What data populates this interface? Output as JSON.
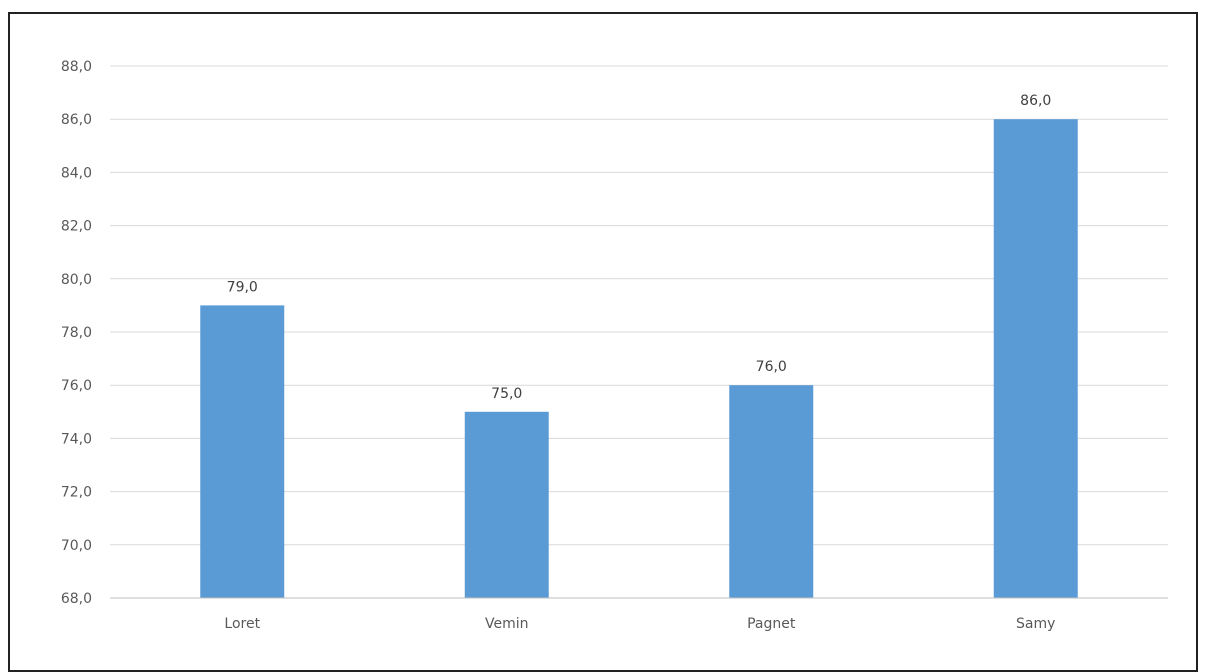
{
  "chart_data": {
    "type": "bar",
    "categories": [
      "Loret",
      "Vemin",
      "Pagnet",
      "Samy"
    ],
    "values": [
      79.0,
      75.0,
      76.0,
      86.0
    ],
    "value_labels": [
      "79,0",
      "75,0",
      "76,0",
      "86,0"
    ],
    "ylim": [
      68,
      88
    ],
    "y_ticks": [
      68,
      70,
      72,
      74,
      76,
      78,
      80,
      82,
      84,
      86,
      88
    ],
    "y_tick_labels": [
      "68,0",
      "70,0",
      "72,0",
      "74,0",
      "76,0",
      "78,0",
      "80,0",
      "82,0",
      "84,0",
      "86,0",
      "88,0"
    ],
    "grid": true,
    "bar_color": "#5B9BD5",
    "gridline_color": "#D9D9D9",
    "axis_color": "#BFBFBF",
    "text_color": "#595959"
  }
}
